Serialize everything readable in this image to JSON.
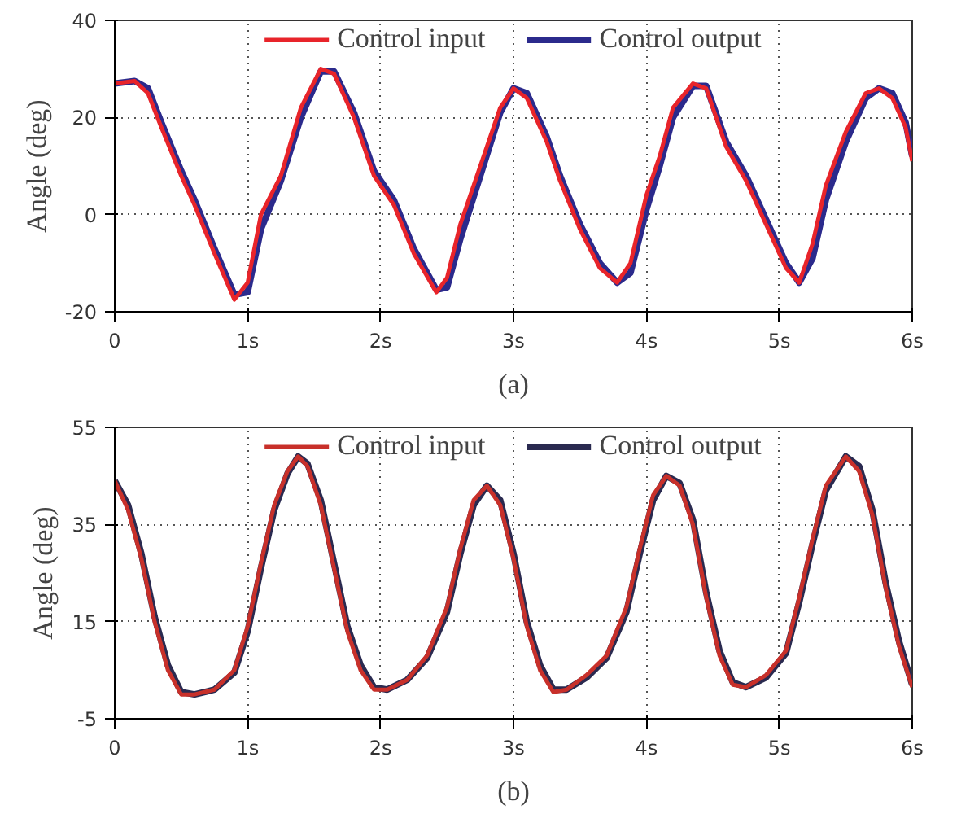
{
  "chart_data": [
    {
      "type": "line",
      "ylabel": "Angle (deg)",
      "annotations": [
        "(a)"
      ],
      "xlim": [
        0,
        6
      ],
      "ylim": [
        -20,
        40
      ],
      "xticks": [
        0,
        {
          "value": 1,
          "label": "1s"
        },
        {
          "value": 2,
          "label": "2s"
        },
        {
          "value": 3,
          "label": "3s"
        },
        {
          "value": 4,
          "label": "4s"
        },
        {
          "value": 5,
          "label": "5s"
        },
        {
          "value": 6,
          "label": "6s"
        }
      ],
      "yticks": [
        -20,
        0,
        20,
        40
      ],
      "grid": true,
      "legend": "top",
      "line_style": "solid",
      "x": [
        0,
        0.15,
        0.25,
        0.35,
        0.5,
        0.6,
        0.75,
        0.9,
        1.0,
        1.1,
        1.25,
        1.4,
        1.55,
        1.65,
        1.8,
        1.95,
        2.1,
        2.25,
        2.42,
        2.5,
        2.6,
        2.75,
        2.9,
        3.0,
        3.1,
        3.25,
        3.35,
        3.5,
        3.65,
        3.78,
        3.88,
        4.0,
        4.1,
        4.2,
        4.35,
        4.45,
        4.6,
        4.75,
        4.9,
        5.05,
        5.15,
        5.25,
        5.35,
        5.5,
        5.65,
        5.75,
        5.85,
        5.95,
        6.0
      ],
      "series": [
        {
          "name": "Control input",
          "color": "#e8242a",
          "values": [
            27,
            27.5,
            25,
            18,
            8,
            2,
            -8,
            -17.5,
            -14,
            0,
            8,
            22,
            30,
            29,
            20,
            8,
            2,
            -8,
            -16,
            -13,
            -2,
            10,
            22,
            26,
            24,
            15,
            7,
            -3,
            -11,
            -14,
            -10,
            4,
            12,
            22,
            27,
            26,
            14,
            7,
            -2,
            -11,
            -14,
            -6,
            6,
            17,
            25,
            26,
            24,
            18,
            11
          ]
        },
        {
          "name": "Control output",
          "color": "#2b2a8c",
          "values": [
            27,
            27.5,
            26,
            19,
            9,
            3,
            -7,
            -16.5,
            -16,
            -3,
            7,
            20,
            29.5,
            29.5,
            21,
            9,
            3,
            -7,
            -15.5,
            -15,
            -5,
            8,
            21,
            26,
            25,
            16,
            8,
            -2,
            -10,
            -14,
            -12,
            1,
            10,
            20,
            26.5,
            26.5,
            15,
            8,
            -1,
            -10,
            -14,
            -9,
            3,
            15,
            24,
            26,
            25,
            19,
            12
          ]
        }
      ]
    },
    {
      "type": "line",
      "ylabel": "Angle (deg)",
      "annotations": [
        "(b)"
      ],
      "xlim": [
        0,
        6
      ],
      "ylim": [
        -5,
        55
      ],
      "xticks": [
        0,
        {
          "value": 1,
          "label": "1s"
        },
        {
          "value": 2,
          "label": "2s"
        },
        {
          "value": 3,
          "label": "3s"
        },
        {
          "value": 4,
          "label": "4s"
        },
        {
          "value": 5,
          "label": "5s"
        },
        {
          "value": 6,
          "label": "6s"
        }
      ],
      "yticks": [
        -5,
        15,
        35,
        55
      ],
      "grid": true,
      "legend": "top",
      "line_style": "solid",
      "x": [
        0,
        0.1,
        0.2,
        0.3,
        0.4,
        0.5,
        0.6,
        0.75,
        0.9,
        1.0,
        1.1,
        1.2,
        1.3,
        1.38,
        1.45,
        1.55,
        1.65,
        1.75,
        1.85,
        1.95,
        2.05,
        2.2,
        2.35,
        2.5,
        2.6,
        2.7,
        2.8,
        2.9,
        3.0,
        3.1,
        3.2,
        3.3,
        3.4,
        3.55,
        3.7,
        3.85,
        3.95,
        4.05,
        4.15,
        4.25,
        4.35,
        4.45,
        4.55,
        4.65,
        4.75,
        4.9,
        5.05,
        5.15,
        5.25,
        5.35,
        5.5,
        5.6,
        5.7,
        5.8,
        5.9,
        6.0
      ],
      "series": [
        {
          "name": "Control input",
          "color": "#c8302a",
          "values": [
            44,
            38,
            28,
            15,
            5,
            0,
            0,
            1,
            5,
            14,
            27,
            39,
            46,
            49,
            47,
            39,
            26,
            13,
            5,
            1,
            1,
            3,
            8,
            18,
            30,
            40,
            43,
            39,
            28,
            14,
            5,
            0.5,
            1,
            4,
            8,
            18,
            30,
            41,
            45,
            43,
            35,
            20,
            8,
            2,
            1.5,
            4,
            9,
            20,
            32,
            43,
            49,
            46,
            37,
            22,
            10,
            1.5
          ]
        },
        {
          "name": "Control output",
          "color": "#2a2a50",
          "values": [
            44,
            39,
            29,
            16,
            6,
            0.5,
            0,
            1,
            4.5,
            13,
            26,
            38,
            45.5,
            49,
            47.5,
            40,
            27,
            14,
            6,
            1.5,
            1,
            3,
            7.5,
            17,
            29,
            39,
            43,
            40,
            29,
            15,
            6,
            1,
            1,
            3.5,
            7.5,
            17,
            29,
            40,
            45,
            43.5,
            36,
            21,
            9,
            2.5,
            1.5,
            3.5,
            8.5,
            19,
            31,
            42,
            49,
            47,
            38,
            23,
            11,
            2
          ]
        }
      ]
    }
  ]
}
